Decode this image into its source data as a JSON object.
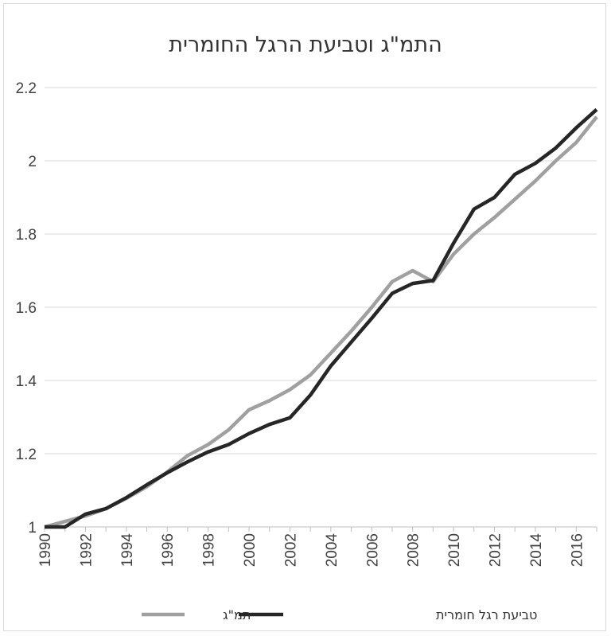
{
  "chart_data": {
    "type": "line",
    "title": "התמ\"ג וטביעת הרגל החומרית",
    "xlabel": "",
    "ylabel": "",
    "x": [
      1990,
      1991,
      1992,
      1993,
      1994,
      1995,
      1996,
      1997,
      1998,
      1999,
      2000,
      2001,
      2002,
      2003,
      2004,
      2005,
      2006,
      2007,
      2008,
      2009,
      2010,
      2011,
      2012,
      2013,
      2014,
      2015,
      2016,
      2017
    ],
    "xlim": [
      1990,
      2017
    ],
    "ylim": [
      1,
      2.2
    ],
    "x_ticks": [
      "1990",
      "1992",
      "1994",
      "1996",
      "1998",
      "2000",
      "2002",
      "2004",
      "2006",
      "2008",
      "2010",
      "2012",
      "2014",
      "2016"
    ],
    "y_ticks": [
      "1",
      "1.2",
      "1.4",
      "1.6",
      "1.8",
      "2",
      "2.2"
    ],
    "grid": "horizontal",
    "legend_position": "bottom",
    "series": [
      {
        "name": "תמ\"ג",
        "color": "#a0a0a0",
        "values": [
          1.0,
          1.015,
          1.03,
          1.05,
          1.078,
          1.11,
          1.15,
          1.195,
          1.225,
          1.265,
          1.32,
          1.345,
          1.375,
          1.415,
          1.475,
          1.535,
          1.6,
          1.67,
          1.7,
          1.67,
          1.745,
          1.8,
          1.845,
          1.895,
          1.945,
          2.0,
          2.05,
          2.12
        ]
      },
      {
        "name": "טביעת רגל חומרית",
        "color": "#262626",
        "values": [
          1.0,
          1.0,
          1.035,
          1.05,
          1.08,
          1.115,
          1.148,
          1.178,
          1.205,
          1.225,
          1.255,
          1.28,
          1.298,
          1.36,
          1.44,
          1.505,
          1.57,
          1.638,
          1.665,
          1.673,
          1.775,
          1.868,
          1.9,
          1.963,
          1.993,
          2.035,
          2.09,
          2.14
        ]
      }
    ]
  }
}
